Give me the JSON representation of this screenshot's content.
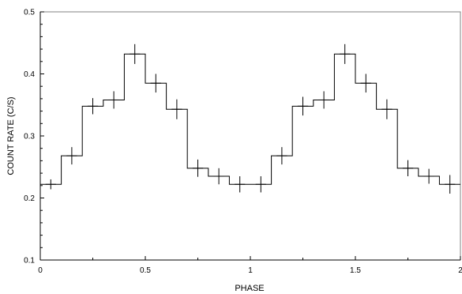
{
  "chart_data": {
    "type": "line",
    "style": "step-histogram-with-error-bars",
    "title": "",
    "xlabel": "PHASE",
    "ylabel": "COUNT RATE (C/S)",
    "xlim": [
      0,
      2
    ],
    "ylim": [
      0.1,
      0.5
    ],
    "xticks": [
      "0",
      "0.5",
      "1",
      "1.5",
      "2"
    ],
    "yticks": [
      "0.1",
      "0.2",
      "0.3",
      "0.4",
      "0.5"
    ],
    "grid": false,
    "bin_width": 0.1,
    "series": [
      {
        "bins": [
          {
            "x": 0.05,
            "y": 0.222,
            "err": 0.008
          },
          {
            "x": 0.15,
            "y": 0.268,
            "err": 0.014
          },
          {
            "x": 0.25,
            "y": 0.348,
            "err": 0.013
          },
          {
            "x": 0.35,
            "y": 0.358,
            "err": 0.014
          },
          {
            "x": 0.45,
            "y": 0.432,
            "err": 0.016
          },
          {
            "x": 0.55,
            "y": 0.385,
            "err": 0.015
          },
          {
            "x": 0.65,
            "y": 0.343,
            "err": 0.016
          },
          {
            "x": 0.75,
            "y": 0.248,
            "err": 0.014
          },
          {
            "x": 0.85,
            "y": 0.235,
            "err": 0.013
          },
          {
            "x": 0.95,
            "y": 0.222,
            "err": 0.013
          },
          {
            "x": 1.05,
            "y": 0.222,
            "err": 0.013
          },
          {
            "x": 1.15,
            "y": 0.268,
            "err": 0.014
          },
          {
            "x": 1.25,
            "y": 0.348,
            "err": 0.015
          },
          {
            "x": 1.35,
            "y": 0.358,
            "err": 0.014
          },
          {
            "x": 1.45,
            "y": 0.432,
            "err": 0.016
          },
          {
            "x": 1.55,
            "y": 0.385,
            "err": 0.015
          },
          {
            "x": 1.65,
            "y": 0.343,
            "err": 0.016
          },
          {
            "x": 1.75,
            "y": 0.248,
            "err": 0.013
          },
          {
            "x": 1.85,
            "y": 0.235,
            "err": 0.012
          },
          {
            "x": 1.95,
            "y": 0.222,
            "err": 0.015
          }
        ]
      }
    ],
    "colors": {
      "line": "#000000",
      "frame": "#808080",
      "background": "#ffffff"
    }
  }
}
